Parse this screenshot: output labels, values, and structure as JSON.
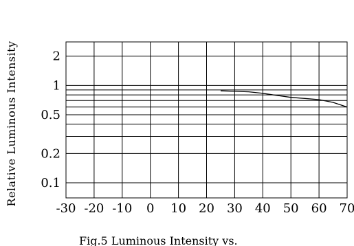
{
  "chart_data": {
    "type": "line",
    "title": "",
    "xlabel": "",
    "ylabel": "Relative Luminous Intensity",
    "caption": "Fig.5 Luminous Intensity vs.",
    "y_scale": "log",
    "xlim": [
      -30,
      70
    ],
    "ylim": [
      0.07,
      2.8
    ],
    "x_ticks": [
      -30,
      -20,
      -10,
      0,
      10,
      20,
      30,
      40,
      50,
      60,
      70
    ],
    "x_tick_labels": [
      "-30",
      "-20",
      "-10",
      "0",
      "10",
      "20",
      "30",
      "40",
      "50",
      "60",
      "70"
    ],
    "y_ticks": [
      0.1,
      0.2,
      0.5,
      1,
      2
    ],
    "y_tick_labels": [
      "0.1",
      "0.2",
      "0.5",
      "1",
      "2"
    ],
    "grid": true,
    "series": [
      {
        "x": [
          25,
          30,
          35,
          40,
          45,
          50,
          55,
          60,
          65,
          70
        ],
        "y": [
          0.88,
          0.87,
          0.86,
          0.83,
          0.79,
          0.755,
          0.735,
          0.715,
          0.67,
          0.6
        ]
      }
    ],
    "line_color": "#000000"
  }
}
